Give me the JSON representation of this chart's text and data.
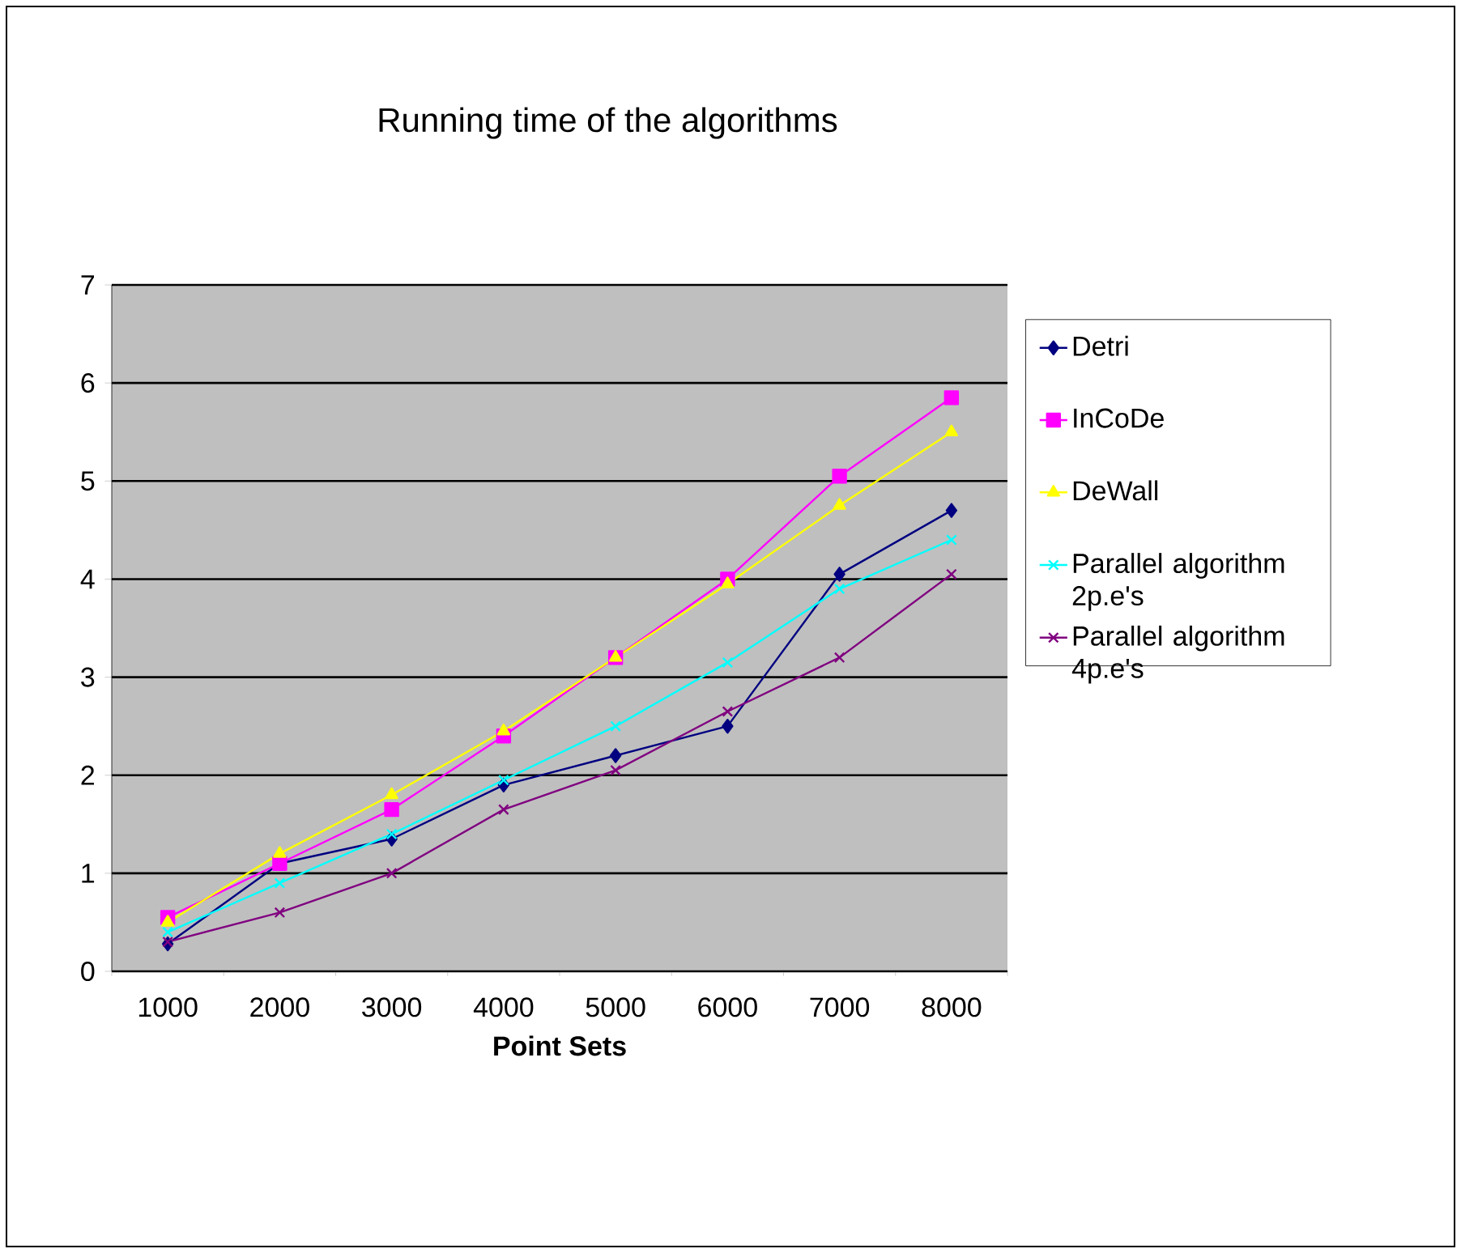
{
  "chart_data": {
    "type": "line",
    "title": "Running time of the algorithms",
    "xlabel": "Point Sets",
    "categories": [
      "1000",
      "2000",
      "3000",
      "4000",
      "5000",
      "6000",
      "7000",
      "8000"
    ],
    "ylim": [
      0,
      7
    ],
    "yticks": [
      0,
      1,
      2,
      3,
      4,
      5,
      6,
      7
    ],
    "grid": "y",
    "legend": "right",
    "series": [
      {
        "name": "Detri",
        "color": "#000080",
        "marker": "diamond",
        "values": [
          0.28,
          1.1,
          1.35,
          1.9,
          2.2,
          2.5,
          4.05,
          4.7
        ]
      },
      {
        "name": "InCoDe",
        "color": "#ff00ff",
        "marker": "square",
        "values": [
          0.55,
          1.1,
          1.65,
          2.4,
          3.2,
          4.0,
          5.05,
          5.85
        ]
      },
      {
        "name": "DeWall",
        "color": "#ffff00",
        "marker": "triangle",
        "values": [
          0.5,
          1.2,
          1.8,
          2.45,
          3.2,
          3.95,
          4.75,
          5.5
        ]
      },
      {
        "name": "Parallel algorithm 2p.e's",
        "color": "#00ffff",
        "marker": "cross",
        "values": [
          0.4,
          0.9,
          1.4,
          1.95,
          2.5,
          3.15,
          3.9,
          4.4
        ]
      },
      {
        "name": "Parallel algorithm 4p.e's",
        "color": "#800080",
        "marker": "cross",
        "values": [
          0.3,
          0.6,
          1.0,
          1.65,
          2.05,
          2.65,
          3.2,
          4.05
        ]
      }
    ]
  }
}
